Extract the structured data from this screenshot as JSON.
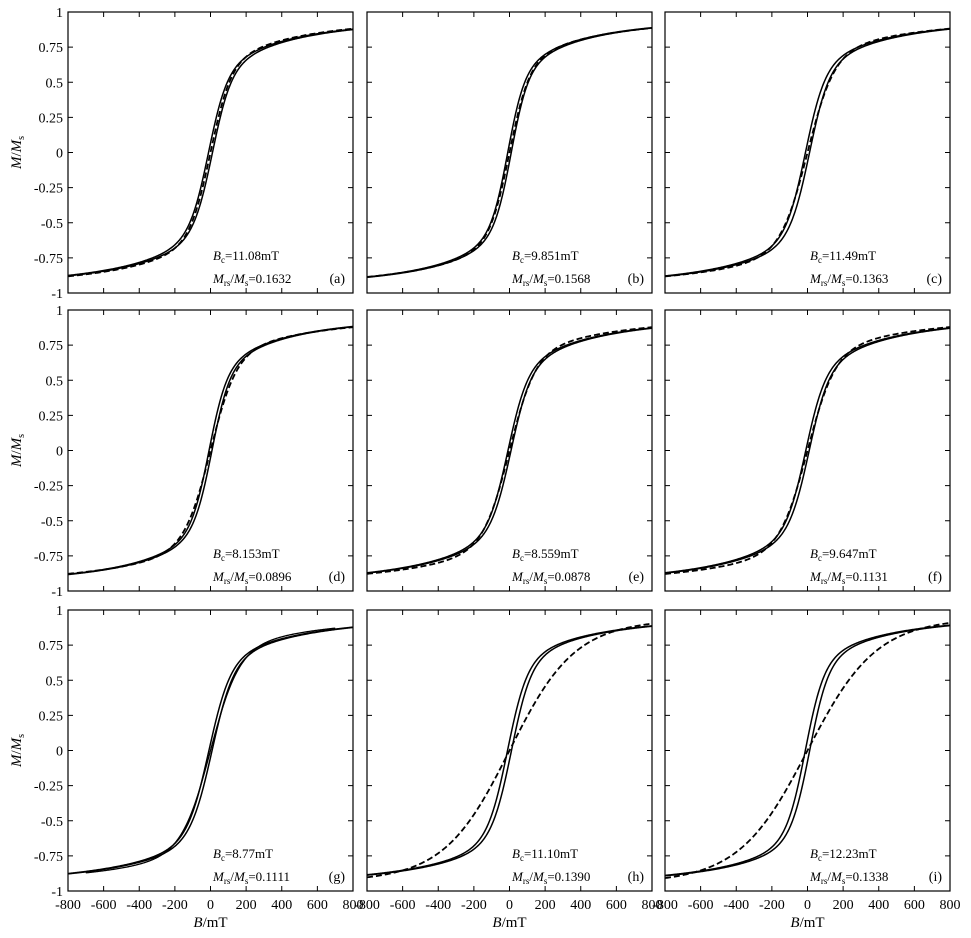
{
  "chart_data": {
    "type": "line",
    "rows": 3,
    "cols": 3,
    "xlim": [
      -800,
      800
    ],
    "ylim": [
      -1,
      1
    ],
    "xticks": [
      -800,
      -600,
      -400,
      -200,
      0,
      200,
      400,
      600,
      800
    ],
    "yticks": [
      -1,
      -0.75,
      -0.5,
      -0.25,
      0,
      0.25,
      0.5,
      0.75,
      1
    ],
    "xtick_labels": [
      "-800",
      "-600",
      "-400",
      "-200",
      "0",
      "200",
      "400",
      "600",
      "800"
    ],
    "ytick_labels": [
      "-1",
      "-0.75",
      "-0.5",
      "-0.25",
      "0",
      "0.25",
      "0.5",
      "0.75",
      "1"
    ],
    "xlabel": {
      "italic": "B",
      "rest": "/mT"
    },
    "ylabel": {
      "italic1": "M",
      "mid": "/",
      "italic2": "M",
      "sub": "s"
    },
    "series_styles": {
      "hysteresis_loop": "solid",
      "induced_curve": "dashed"
    },
    "panels": [
      {
        "label": "(a)",
        "Bc": "=11.08mT",
        "ratio": "=0.1632",
        "coercivity_mT": 11.08,
        "Mrs_Ms": 0.1632,
        "loop": {
          "k": 105,
          "s": 0.55
        },
        "dash": {
          "k": 115,
          "s": 0.6,
          "style": "dashed"
        }
      },
      {
        "label": "(b)",
        "Bc": "=9.851mT",
        "ratio": "=0.1568",
        "coercivity_mT": 9.851,
        "Mrs_Ms": 0.1568,
        "loop": {
          "k": 95,
          "s": 0.55
        },
        "dash": {
          "k": 110,
          "s": 0.6,
          "style": "dashed"
        }
      },
      {
        "label": "(c)",
        "Bc": "=11.49mT",
        "ratio": "=0.1363",
        "coercivity_mT": 11.49,
        "Mrs_Ms": 0.1363,
        "loop": {
          "k": 110,
          "s": 0.58
        },
        "dash": {
          "k": 150,
          "s": 0.68,
          "style": "dashed"
        }
      },
      {
        "label": "(d)",
        "Bc": "=8.153mT",
        "ratio": "=0.0896",
        "coercivity_mT": 8.153,
        "Mrs_Ms": 0.0896,
        "loop": {
          "k": 100,
          "s": 0.55
        },
        "dash": {
          "k": 145,
          "s": 0.66,
          "style": "dashed"
        }
      },
      {
        "label": "(e)",
        "Bc": "=8.559mT",
        "ratio": "=0.0878",
        "coercivity_mT": 8.559,
        "Mrs_Ms": 0.0878,
        "loop": {
          "k": 110,
          "s": 0.55
        },
        "dash": {
          "k": 145,
          "s": 0.66,
          "style": "dashed"
        }
      },
      {
        "label": "(f)",
        "Bc": "=9.647mT",
        "ratio": "=0.1131",
        "coercivity_mT": 9.647,
        "Mrs_Ms": 0.1131,
        "loop": {
          "k": 110,
          "s": 0.55
        },
        "dash": {
          "k": 155,
          "s": 0.68,
          "style": "dashed"
        }
      },
      {
        "label": "(g)",
        "Bc": "=8.77mT",
        "ratio": "=0.1111",
        "coercivity_mT": 8.77,
        "Mrs_Ms": 0.1111,
        "loop": {
          "k": 120,
          "s": 0.6
        },
        "dash": {
          "k": 160,
          "s": 0.7,
          "style": "solid-thin"
        }
      },
      {
        "label": "(h)",
        "Bc": "=11.10mT",
        "ratio": "=0.1390",
        "coercivity_mT": 11.1,
        "Mrs_Ms": 0.139,
        "loop": {
          "k": 110,
          "s": 0.6
        },
        "dash": {
          "k": 360,
          "s": 0.88,
          "style": "dashed"
        }
      },
      {
        "label": "(i)",
        "Bc": "=12.23mT",
        "ratio": "=0.1338",
        "coercivity_mT": 12.23,
        "Mrs_Ms": 0.1338,
        "loop": {
          "k": 105,
          "s": 0.6
        },
        "dash": {
          "k": 380,
          "s": 0.9,
          "style": "dashed"
        }
      }
    ]
  }
}
